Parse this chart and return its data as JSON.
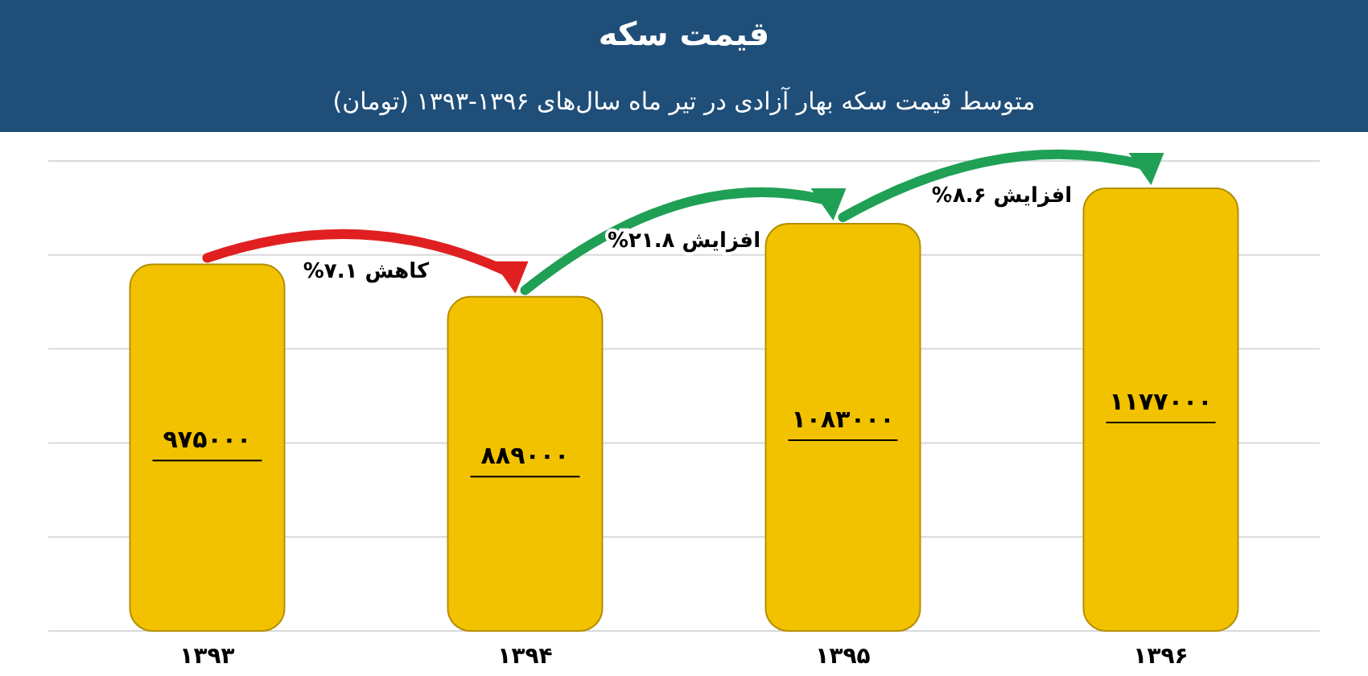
{
  "chart_data": {
    "type": "bar",
    "title": "قیمت سکه",
    "subtitle": "متوسط قیمت سکه بهار آزادی در تیر ماه سال‌های ۱۳۹۶-۱۳۹۳ (تومان)",
    "categories": [
      "۱۳۹۳",
      "۱۳۹۴",
      "۱۳۹۵",
      "۱۳۹۶"
    ],
    "values": [
      975000,
      889000,
      1083000,
      1177000
    ],
    "value_labels": [
      "۹۷۵۰۰۰",
      "۸۸۹۰۰۰",
      "۱۰۸۳۰۰۰",
      "۱۱۷۷۰۰۰"
    ],
    "color": "#f2c200",
    "ylim": [
      0,
      1250000
    ],
    "yticks": [
      {
        "value": 0,
        "label": null
      },
      {
        "value": 250000,
        "label": null
      },
      {
        "value": 500000,
        "label": null
      },
      {
        "value": 750000,
        "label": null
      },
      {
        "value": 1000000,
        "label": null
      },
      {
        "value": 1250000,
        "label": null
      }
    ],
    "tick_labels": "x",
    "grid": "y",
    "annotations": [
      "کاهش ۷.۱%",
      "افزایش ۲۱.۸%",
      "افزایش ۸.۶%"
    ]
  }
}
